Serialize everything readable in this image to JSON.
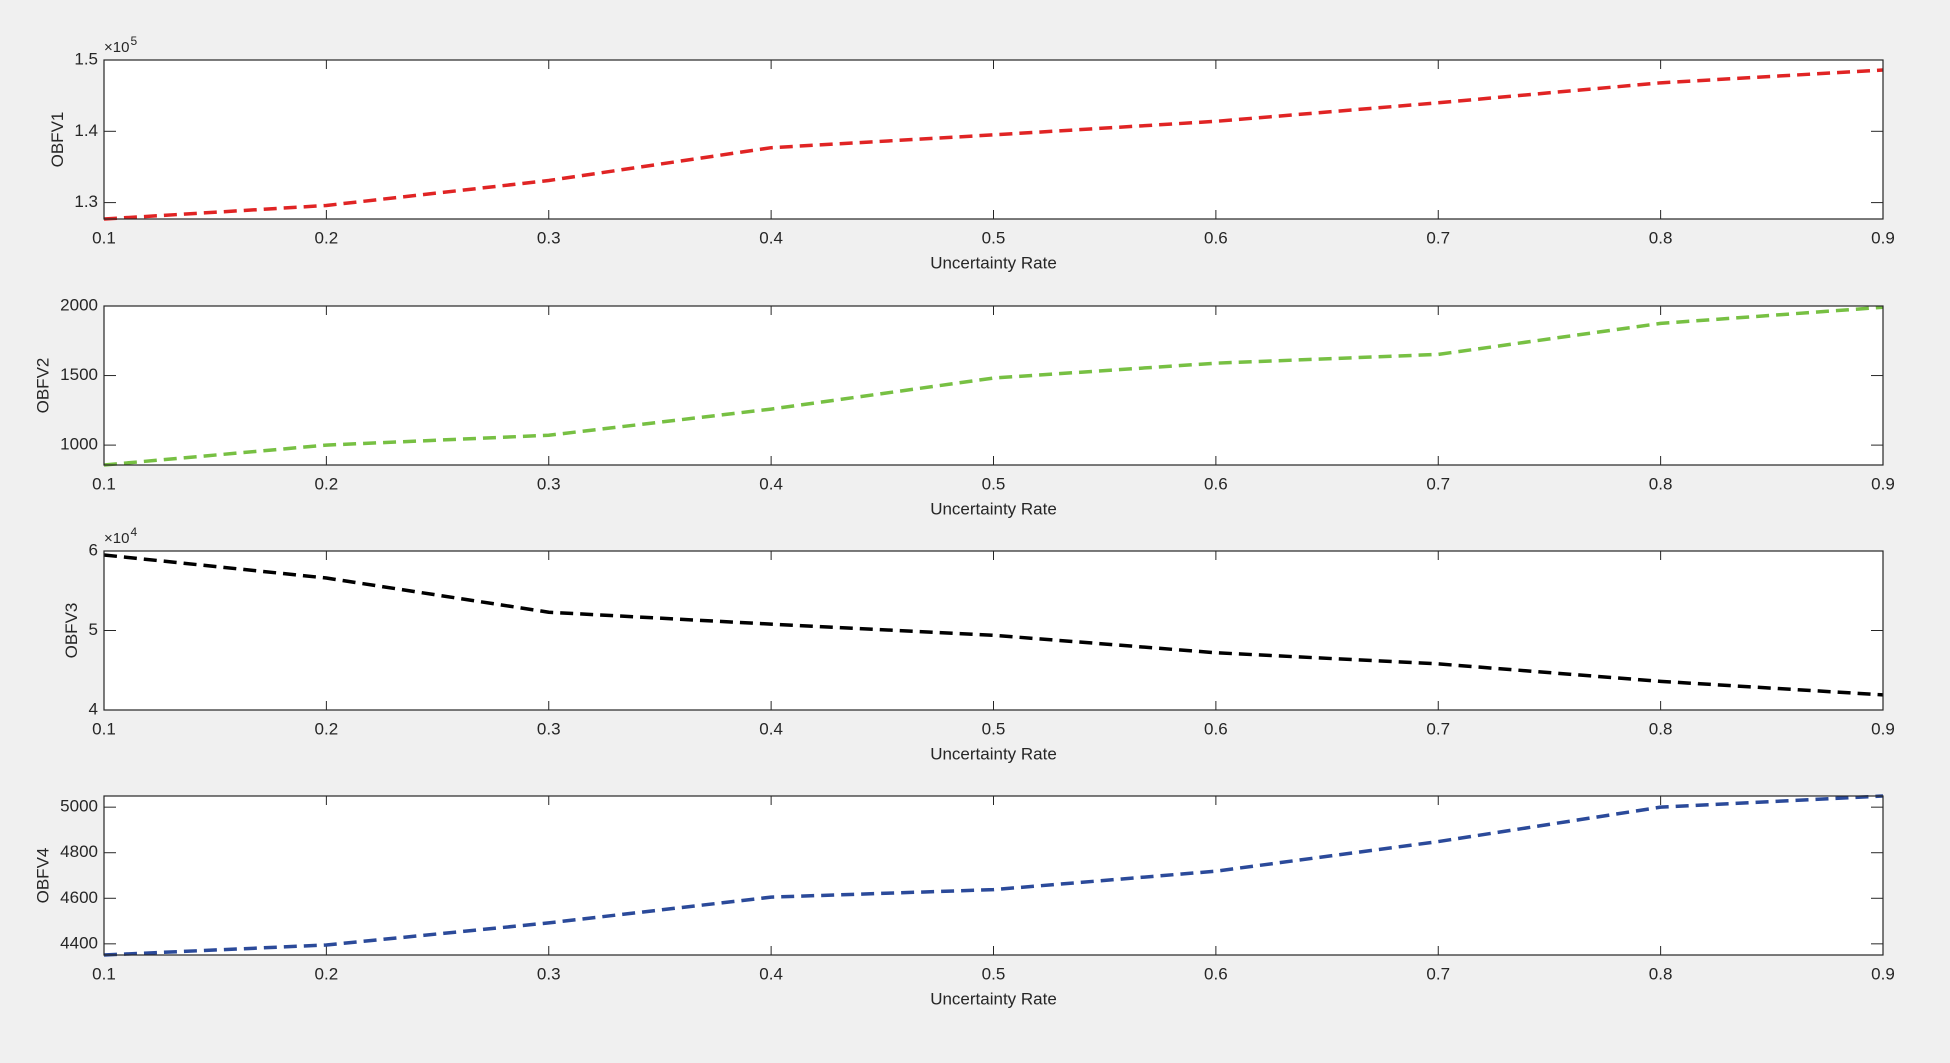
{
  "chart_data": [
    {
      "type": "line",
      "x": [
        0.1,
        0.2,
        0.3,
        0.4,
        0.5,
        0.6,
        0.7,
        0.8,
        0.9
      ],
      "values": [
        1.277,
        1.296,
        1.331,
        1.377,
        1.395,
        1.414,
        1.44,
        1.468,
        1.486
      ],
      "color": "#e02424",
      "xlim": [
        0.1,
        0.9
      ],
      "xticks": [
        0.1,
        0.2,
        0.3,
        0.4,
        0.5,
        0.6,
        0.7,
        0.8,
        0.9
      ],
      "ylim": [
        1.277,
        1.5
      ],
      "yticks": [
        1.3,
        1.4,
        1.5
      ],
      "xlabel": "Uncertainty Rate",
      "ylabel": "OBFV1",
      "y_exponent_base": "×10",
      "y_exponent": "5"
    },
    {
      "type": "line",
      "x": [
        0.1,
        0.2,
        0.3,
        0.4,
        0.5,
        0.6,
        0.7,
        0.8,
        0.9
      ],
      "values": [
        857,
        1000,
        1071,
        1259,
        1482,
        1589,
        1652,
        1875,
        1991
      ],
      "color": "#77c043",
      "xlim": [
        0.1,
        0.9
      ],
      "xticks": [
        0.1,
        0.2,
        0.3,
        0.4,
        0.5,
        0.6,
        0.7,
        0.8,
        0.9
      ],
      "ylim": [
        857,
        2000
      ],
      "yticks": [
        1000,
        1500,
        2000
      ],
      "xlabel": "Uncertainty Rate",
      "ylabel": "OBFV2"
    },
    {
      "type": "line",
      "x": [
        0.1,
        0.2,
        0.3,
        0.4,
        0.5,
        0.6,
        0.7,
        0.8,
        0.9
      ],
      "values": [
        5.95,
        5.66,
        5.23,
        5.08,
        4.94,
        4.72,
        4.58,
        4.36,
        4.19
      ],
      "color": "#000000",
      "xlim": [
        0.1,
        0.9
      ],
      "xticks": [
        0.1,
        0.2,
        0.3,
        0.4,
        0.5,
        0.6,
        0.7,
        0.8,
        0.9
      ],
      "ylim": [
        4,
        6
      ],
      "yticks": [
        4,
        5,
        6
      ],
      "xlabel": "Uncertainty Rate",
      "ylabel": "OBFV3",
      "y_exponent_base": "×10",
      "y_exponent": "4"
    },
    {
      "type": "line",
      "x": [
        0.1,
        0.2,
        0.3,
        0.4,
        0.5,
        0.6,
        0.7,
        0.8,
        0.9
      ],
      "values": [
        4351,
        4395,
        4492,
        4605,
        4638,
        4719,
        4849,
        5000,
        5049
      ],
      "color": "#2b4a9a",
      "xlim": [
        0.1,
        0.9
      ],
      "xticks": [
        0.1,
        0.2,
        0.3,
        0.4,
        0.5,
        0.6,
        0.7,
        0.8,
        0.9
      ],
      "ylim": [
        4351,
        5049
      ],
      "yticks": [
        4400,
        4600,
        4800,
        5000
      ],
      "xlabel": "Uncertainty Rate",
      "ylabel": "OBFV4"
    }
  ]
}
